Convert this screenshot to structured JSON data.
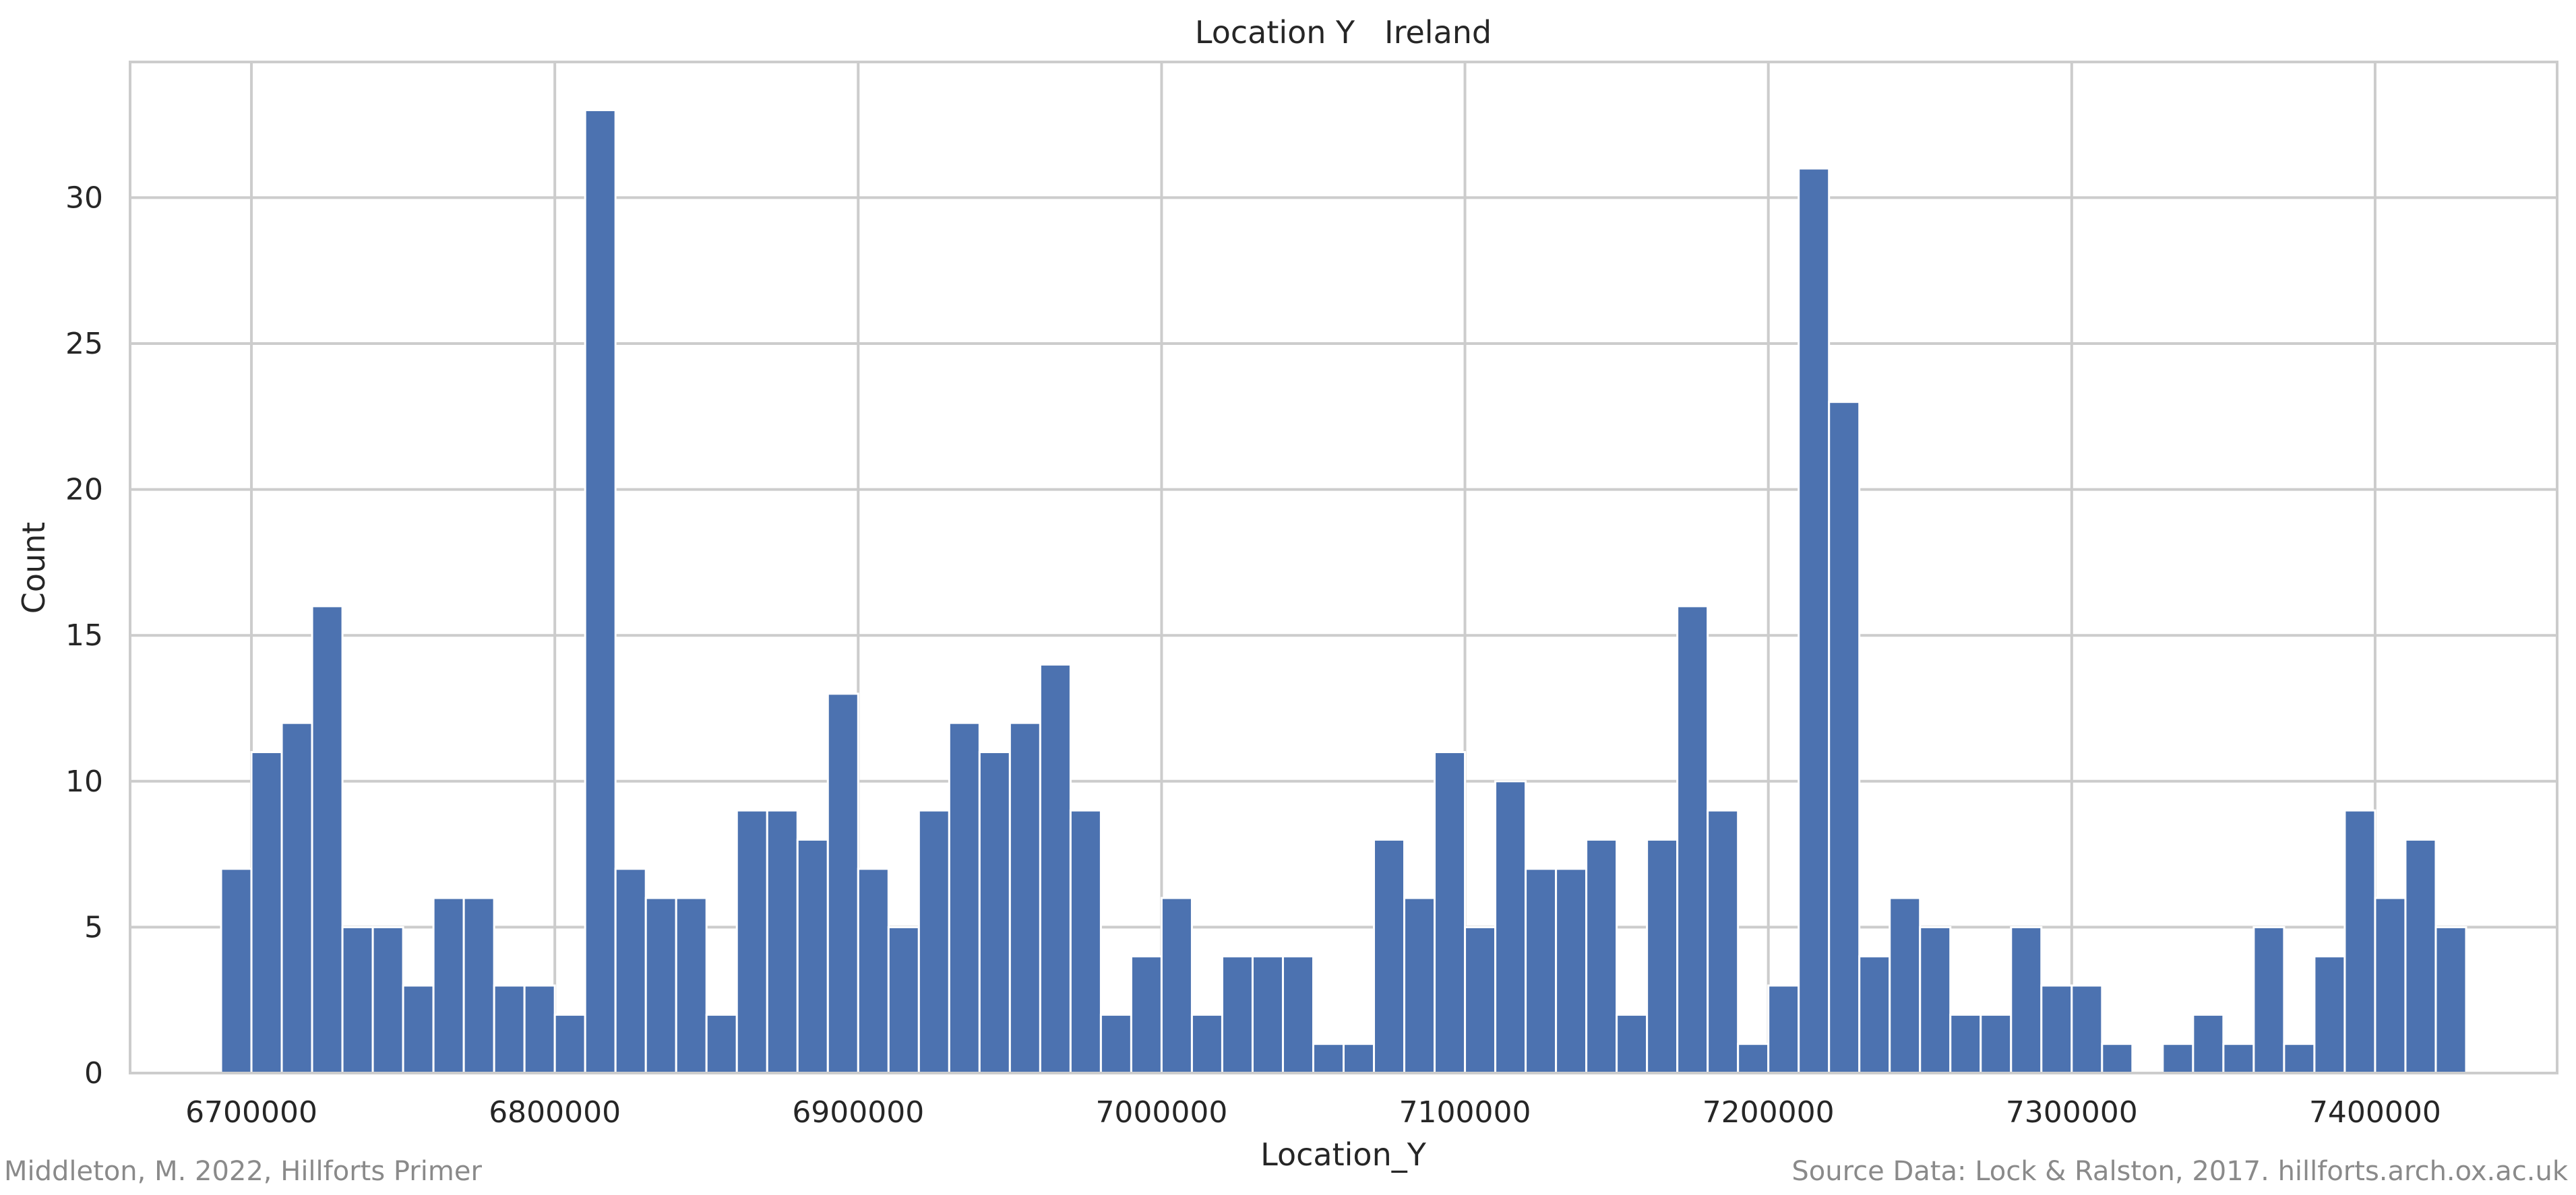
{
  "chart_data": {
    "type": "bar",
    "title": "Location Y   Ireland",
    "xlabel": "Location_Y",
    "ylabel": "Count",
    "bin_start": 6690000,
    "bin_width": 10000,
    "values": [
      7,
      11,
      12,
      16,
      5,
      5,
      3,
      6,
      6,
      3,
      3,
      2,
      33,
      7,
      6,
      6,
      2,
      9,
      9,
      8,
      13,
      7,
      5,
      9,
      12,
      11,
      12,
      14,
      9,
      2,
      4,
      6,
      2,
      4,
      4,
      4,
      1,
      1,
      8,
      6,
      11,
      5,
      10,
      7,
      7,
      8,
      2,
      8,
      16,
      9,
      1,
      3,
      31,
      23,
      4,
      6,
      5,
      2,
      2,
      5,
      3,
      3,
      1,
      0,
      1,
      2,
      1,
      5,
      1,
      4,
      9,
      6,
      8,
      5
    ],
    "xlim": [
      6660000,
      7460000
    ],
    "ylim": [
      0,
      34.65
    ],
    "x_ticks": [
      6700000,
      6800000,
      6900000,
      7000000,
      7100000,
      7200000,
      7300000,
      7400000
    ],
    "x_tick_labels": [
      "6700000",
      "6800000",
      "6900000",
      "7000000",
      "7100000",
      "7200000",
      "7300000",
      "7400000"
    ],
    "y_ticks": [
      0,
      5,
      10,
      15,
      20,
      25,
      30
    ],
    "y_tick_labels": [
      "0",
      "5",
      "10",
      "15",
      "20",
      "25",
      "30"
    ],
    "grid": true,
    "bar_color": "#4c72b0"
  },
  "footer": {
    "left": "Middleton, M. 2022, Hillforts Primer",
    "right": "Source Data: Lock & Ralston, 2017. hillforts.arch.ox.ac.uk"
  }
}
